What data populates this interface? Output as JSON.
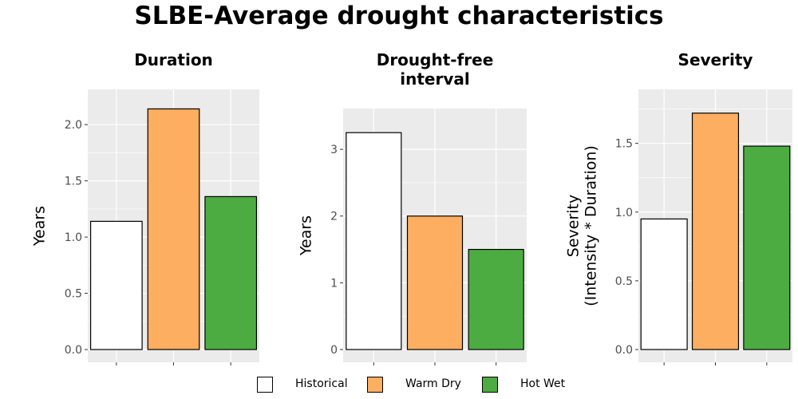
{
  "title": "SLBE-Average drought characteristics",
  "colors": {
    "Historical": "#ffffff",
    "Warm Dry": "#fdae61",
    "Hot Wet": "#4dac41",
    "panel_bg": "#ebebeb",
    "grid": "#ffffff",
    "bar_border": "#000000"
  },
  "legend": [
    {
      "label": "Historical",
      "color": "#ffffff"
    },
    {
      "label": "Warm Dry",
      "color": "#fdae61"
    },
    {
      "label": "Hot Wet",
      "color": "#4dac41"
    }
  ],
  "chart_data": [
    {
      "type": "bar",
      "title": "Duration",
      "ylabel": "Years",
      "categories": [
        "Historical",
        "Warm Dry",
        "Hot Wet"
      ],
      "values": [
        1.14,
        2.14,
        1.36
      ],
      "ylim": [
        0,
        2.2
      ],
      "yticks": [
        0.0,
        0.5,
        1.0,
        1.5,
        2.0
      ],
      "ytick_labels": [
        "0.0",
        "0.5",
        "1.0",
        "1.5",
        "2.0"
      ],
      "grid": true,
      "legend_position": "bottom"
    },
    {
      "type": "bar",
      "title": "Drought-free\ninterval",
      "ylabel": "Years",
      "categories": [
        "Historical",
        "Warm Dry",
        "Hot Wet"
      ],
      "values": [
        3.25,
        2.0,
        1.5
      ],
      "ylim": [
        0,
        3.42
      ],
      "yticks": [
        0,
        1,
        2,
        3
      ],
      "ytick_labels": [
        "0",
        "1",
        "2",
        "3"
      ],
      "grid": true,
      "legend_position": "bottom"
    },
    {
      "type": "bar",
      "title": "Severity",
      "ylabel": "Severity\n(Intensity * Duration)",
      "categories": [
        "Historical",
        "Warm Dry",
        "Hot Wet"
      ],
      "values": [
        0.95,
        1.72,
        1.48
      ],
      "ylim": [
        0,
        1.8
      ],
      "yticks": [
        0.0,
        0.5,
        1.0,
        1.5
      ],
      "ytick_labels": [
        "0.0",
        "0.5",
        "1.0",
        "1.5"
      ],
      "grid": true,
      "legend_position": "bottom"
    }
  ]
}
